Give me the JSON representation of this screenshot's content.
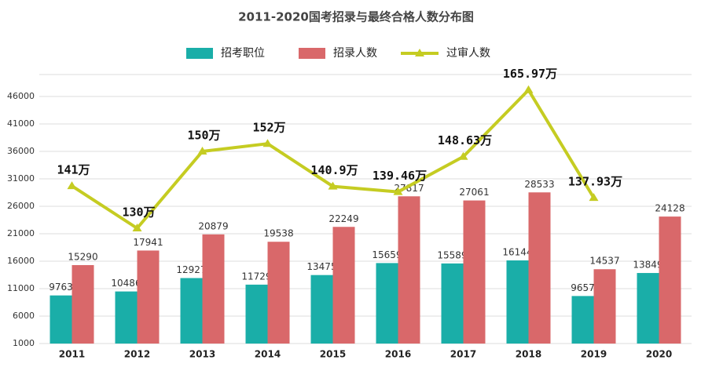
{
  "chart_data": {
    "type": "bar",
    "title": "2011-2020国考招录与最终合格人数分布图",
    "categories": [
      "2011",
      "2012",
      "2013",
      "2014",
      "2015",
      "2016",
      "2017",
      "2018",
      "2019",
      "2020"
    ],
    "series": [
      {
        "name": "招考职位",
        "color": "#1aaea8",
        "values": [
          9763,
          10486,
          12927,
          11729,
          13475,
          15659,
          15589,
          16144,
          9657,
          13849
        ]
      },
      {
        "name": "招录人数",
        "color": "#d9686a",
        "values": [
          15290,
          17941,
          20879,
          19538,
          22249,
          27817,
          27061,
          28533,
          14537,
          24128
        ]
      },
      {
        "name": "过审人数",
        "color": "#c5cc22",
        "type": "line",
        "axis": "y2",
        "values": [
          141,
          130,
          150,
          152,
          140.9,
          139.46,
          148.63,
          165.97,
          137.93,
          null
        ],
        "value_labels": [
          "141万",
          "130万",
          "150万",
          "152万",
          "140.9万",
          "139.46万",
          "148.63万",
          "165.97万",
          "137.93万",
          null
        ]
      }
    ],
    "ylim": [
      1000,
      50000
    ],
    "yticks": [
      1000,
      6000,
      11000,
      16000,
      21000,
      26000,
      31000,
      36000,
      41000,
      46000
    ],
    "y2lim": [
      100,
      170
    ],
    "grid": true,
    "legend": "top"
  }
}
